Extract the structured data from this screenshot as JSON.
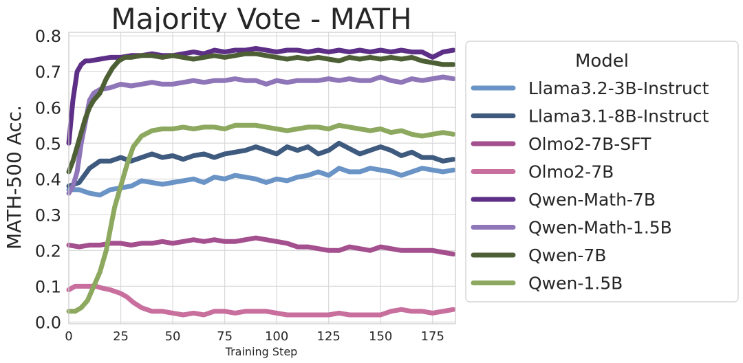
{
  "chart_data": {
    "type": "line",
    "title": "Majority Vote - MATH",
    "xlabel": "Training Step",
    "ylabel": "MATH-500 Acc.",
    "xlim": [
      0,
      186
    ],
    "ylim": [
      -0.005,
      0.81
    ],
    "xticks": [
      0,
      25,
      50,
      75,
      100,
      125,
      150,
      175
    ],
    "yticks": [
      0.0,
      0.1,
      0.2,
      0.3,
      0.4,
      0.5,
      0.6,
      0.7,
      0.8
    ],
    "grid": true,
    "legend_title": "Model",
    "legend_position": "outside-right",
    "series": [
      {
        "name": "Llama3.2-3B-Instruct",
        "color": "#6a93c6",
        "x": [
          0,
          5,
          10,
          15,
          20,
          25,
          30,
          35,
          40,
          45,
          50,
          55,
          60,
          65,
          70,
          75,
          80,
          85,
          90,
          95,
          100,
          105,
          110,
          115,
          120,
          125,
          130,
          135,
          140,
          145,
          150,
          155,
          160,
          165,
          170,
          175,
          180,
          185
        ],
        "y": [
          0.37,
          0.37,
          0.36,
          0.355,
          0.37,
          0.375,
          0.38,
          0.395,
          0.39,
          0.385,
          0.39,
          0.395,
          0.4,
          0.39,
          0.405,
          0.4,
          0.41,
          0.405,
          0.4,
          0.39,
          0.4,
          0.395,
          0.405,
          0.41,
          0.42,
          0.41,
          0.43,
          0.42,
          0.42,
          0.43,
          0.425,
          0.42,
          0.41,
          0.42,
          0.43,
          0.425,
          0.42,
          0.425
        ]
      },
      {
        "name": "Llama3.1-8B-Instruct",
        "color": "#3e5a7e",
        "x": [
          0,
          5,
          10,
          15,
          20,
          25,
          30,
          35,
          40,
          45,
          50,
          55,
          60,
          65,
          70,
          75,
          80,
          85,
          90,
          95,
          100,
          105,
          110,
          115,
          120,
          125,
          130,
          135,
          140,
          145,
          150,
          155,
          160,
          165,
          170,
          175,
          180,
          185
        ],
        "y": [
          0.38,
          0.39,
          0.43,
          0.45,
          0.45,
          0.46,
          0.45,
          0.46,
          0.47,
          0.46,
          0.465,
          0.455,
          0.465,
          0.47,
          0.46,
          0.47,
          0.475,
          0.48,
          0.49,
          0.48,
          0.47,
          0.49,
          0.48,
          0.49,
          0.47,
          0.48,
          0.5,
          0.485,
          0.47,
          0.48,
          0.49,
          0.48,
          0.465,
          0.475,
          0.46,
          0.46,
          0.45,
          0.455
        ]
      },
      {
        "name": "Olmo2-7B-SFT",
        "color": "#a44f8e",
        "x": [
          0,
          5,
          10,
          15,
          20,
          25,
          30,
          35,
          40,
          45,
          50,
          55,
          60,
          65,
          70,
          75,
          80,
          85,
          90,
          95,
          100,
          105,
          110,
          115,
          120,
          125,
          130,
          135,
          140,
          145,
          150,
          155,
          160,
          165,
          170,
          175,
          180,
          185
        ],
        "y": [
          0.215,
          0.21,
          0.215,
          0.215,
          0.22,
          0.22,
          0.215,
          0.22,
          0.22,
          0.225,
          0.22,
          0.225,
          0.23,
          0.225,
          0.23,
          0.225,
          0.225,
          0.23,
          0.235,
          0.23,
          0.225,
          0.22,
          0.21,
          0.21,
          0.205,
          0.2,
          0.2,
          0.21,
          0.205,
          0.2,
          0.21,
          0.205,
          0.2,
          0.2,
          0.2,
          0.2,
          0.195,
          0.19
        ]
      },
      {
        "name": "Olmo2-7B",
        "color": "#c86f9e",
        "x": [
          0,
          3,
          6,
          10,
          13,
          16,
          20,
          25,
          28,
          31,
          35,
          40,
          45,
          50,
          55,
          60,
          65,
          70,
          75,
          80,
          85,
          90,
          95,
          100,
          105,
          110,
          115,
          120,
          125,
          130,
          135,
          140,
          145,
          150,
          155,
          160,
          165,
          170,
          175,
          180,
          185
        ],
        "y": [
          0.09,
          0.1,
          0.1,
          0.1,
          0.1,
          0.095,
          0.09,
          0.08,
          0.07,
          0.055,
          0.04,
          0.03,
          0.03,
          0.025,
          0.02,
          0.025,
          0.02,
          0.03,
          0.03,
          0.025,
          0.03,
          0.03,
          0.03,
          0.025,
          0.02,
          0.02,
          0.02,
          0.02,
          0.02,
          0.025,
          0.02,
          0.02,
          0.02,
          0.02,
          0.03,
          0.035,
          0.03,
          0.03,
          0.025,
          0.03,
          0.035
        ]
      },
      {
        "name": "Qwen-Math-7B",
        "color": "#5e2f87",
        "x": [
          0,
          2,
          4,
          6,
          8,
          10,
          15,
          20,
          25,
          30,
          35,
          40,
          45,
          50,
          55,
          60,
          65,
          70,
          75,
          80,
          85,
          90,
          95,
          100,
          105,
          110,
          115,
          120,
          125,
          130,
          135,
          140,
          145,
          150,
          155,
          160,
          165,
          170,
          175,
          180,
          185
        ],
        "y": [
          0.5,
          0.62,
          0.7,
          0.72,
          0.73,
          0.73,
          0.735,
          0.74,
          0.74,
          0.745,
          0.745,
          0.75,
          0.745,
          0.745,
          0.75,
          0.755,
          0.75,
          0.76,
          0.755,
          0.76,
          0.76,
          0.765,
          0.76,
          0.755,
          0.76,
          0.76,
          0.755,
          0.76,
          0.755,
          0.76,
          0.755,
          0.76,
          0.755,
          0.76,
          0.755,
          0.76,
          0.755,
          0.755,
          0.74,
          0.755,
          0.76
        ]
      },
      {
        "name": "Qwen-Math-1.5B",
        "color": "#8f76b8",
        "x": [
          0,
          2,
          4,
          6,
          8,
          10,
          12,
          15,
          20,
          25,
          30,
          35,
          40,
          45,
          50,
          55,
          60,
          65,
          70,
          75,
          80,
          85,
          90,
          95,
          100,
          105,
          110,
          115,
          120,
          125,
          130,
          135,
          140,
          145,
          150,
          155,
          160,
          165,
          170,
          175,
          180,
          185
        ],
        "y": [
          0.36,
          0.38,
          0.42,
          0.5,
          0.56,
          0.62,
          0.64,
          0.65,
          0.655,
          0.665,
          0.66,
          0.665,
          0.67,
          0.665,
          0.665,
          0.67,
          0.675,
          0.67,
          0.675,
          0.675,
          0.68,
          0.675,
          0.675,
          0.665,
          0.675,
          0.67,
          0.675,
          0.675,
          0.675,
          0.68,
          0.675,
          0.68,
          0.675,
          0.675,
          0.685,
          0.675,
          0.67,
          0.68,
          0.675,
          0.68,
          0.685,
          0.68
        ]
      },
      {
        "name": "Qwen-7B",
        "color": "#4d5f35",
        "x": [
          0,
          2,
          4,
          6,
          8,
          10,
          12,
          15,
          18,
          21,
          24,
          27,
          30,
          35,
          40,
          45,
          50,
          55,
          60,
          65,
          70,
          75,
          80,
          85,
          90,
          95,
          100,
          105,
          110,
          115,
          120,
          125,
          130,
          135,
          140,
          145,
          150,
          155,
          160,
          165,
          170,
          175,
          180,
          185
        ],
        "y": [
          0.42,
          0.45,
          0.49,
          0.53,
          0.57,
          0.6,
          0.62,
          0.64,
          0.68,
          0.71,
          0.73,
          0.74,
          0.74,
          0.745,
          0.745,
          0.74,
          0.745,
          0.74,
          0.735,
          0.74,
          0.745,
          0.74,
          0.745,
          0.75,
          0.75,
          0.745,
          0.74,
          0.735,
          0.74,
          0.735,
          0.74,
          0.735,
          0.73,
          0.74,
          0.735,
          0.74,
          0.735,
          0.74,
          0.735,
          0.74,
          0.73,
          0.725,
          0.72,
          0.72
        ]
      },
      {
        "name": "Qwen-1.5B",
        "color": "#8da85f",
        "x": [
          0,
          3,
          6,
          9,
          12,
          15,
          18,
          20,
          22,
          25,
          28,
          31,
          35,
          40,
          45,
          50,
          55,
          60,
          65,
          70,
          75,
          80,
          85,
          90,
          95,
          100,
          105,
          110,
          115,
          120,
          125,
          130,
          135,
          140,
          145,
          150,
          155,
          160,
          165,
          170,
          175,
          180,
          185
        ],
        "y": [
          0.03,
          0.03,
          0.04,
          0.06,
          0.1,
          0.14,
          0.2,
          0.26,
          0.32,
          0.38,
          0.44,
          0.49,
          0.52,
          0.535,
          0.54,
          0.54,
          0.545,
          0.54,
          0.545,
          0.545,
          0.54,
          0.55,
          0.55,
          0.55,
          0.545,
          0.54,
          0.535,
          0.54,
          0.545,
          0.545,
          0.54,
          0.55,
          0.545,
          0.54,
          0.535,
          0.54,
          0.53,
          0.535,
          0.525,
          0.52,
          0.525,
          0.53,
          0.525
        ]
      }
    ]
  }
}
